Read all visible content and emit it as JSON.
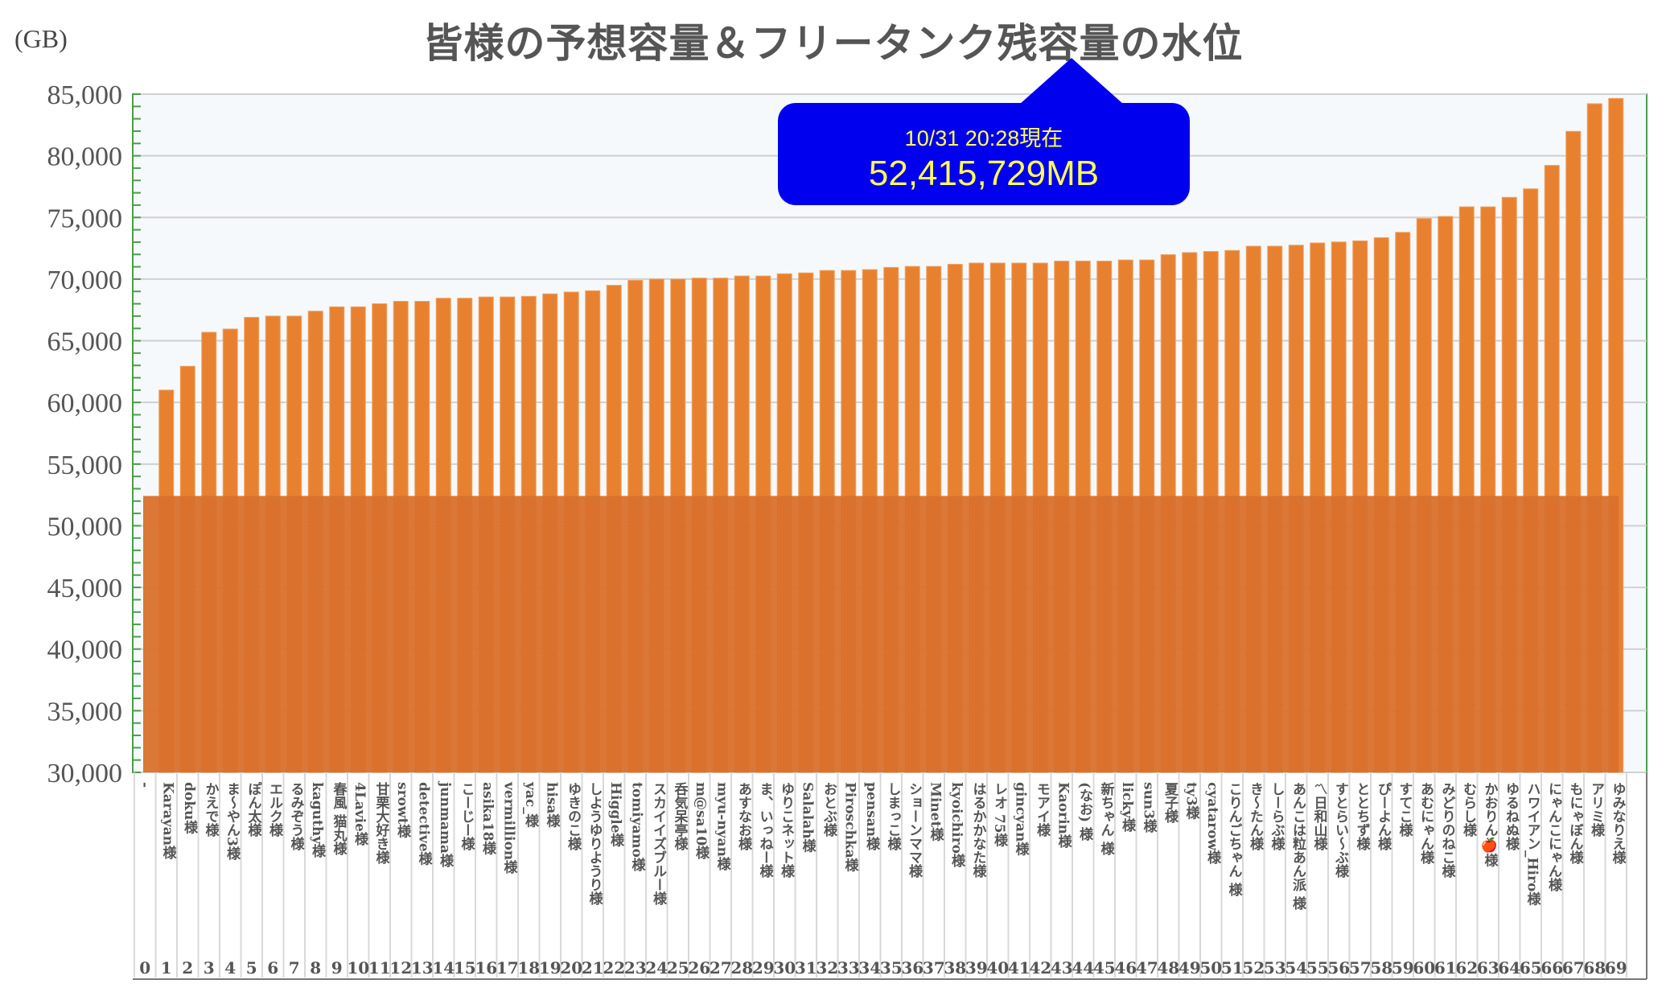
{
  "chart_data": {
    "type": "bar",
    "title": "皆様の予想容量＆フリータンク残容量の水位",
    "ylabel": "(GB)",
    "xlabel": "",
    "ylim": [
      30000,
      85000
    ],
    "yticks": [
      "30,000",
      "35,000",
      "40,000",
      "45,000",
      "50,000",
      "55,000",
      "60,000",
      "65,000",
      "70,000",
      "75,000",
      "80,000",
      "85,000"
    ],
    "grid": true,
    "categories": [
      "0",
      "1",
      "2",
      "3",
      "4",
      "5",
      "6",
      "7",
      "8",
      "9",
      "10",
      "11",
      "12",
      "13",
      "14",
      "15",
      "16",
      "17",
      "18",
      "19",
      "20",
      "21",
      "22",
      "23",
      "24",
      "25",
      "26",
      "27",
      "28",
      "29",
      "30",
      "31",
      "32",
      "33",
      "34",
      "35",
      "36",
      "37",
      "38",
      "39",
      "40",
      "41",
      "42",
      "43",
      "44",
      "45",
      "46",
      "47",
      "48",
      "49",
      "50",
      "51",
      "52",
      "53",
      "54",
      "55",
      "56",
      "57",
      "58",
      "59",
      "60",
      "61",
      "62",
      "63",
      "64",
      "65",
      "66",
      "67",
      "68",
      "69"
    ],
    "names": [
      "-",
      "Karayan様",
      "doku様",
      "かえで様",
      "ま～やん3様",
      "ぽん太様",
      "エルク様",
      "るみぞう様",
      "kaguthy様",
      "春風 猫丸様",
      "4Lavie様",
      "甘栗大好き様",
      "srowt様",
      "detective様",
      "junmama様",
      "こーじー様",
      "asika18様",
      "vermillion様",
      "yac_様",
      "hisa様",
      "ゆきのこ様",
      "しようゆりようり様",
      "Higgle様",
      "tomiyamo様",
      "スカイイズブルー様",
      "呑気呆亭様",
      "m@sa10様",
      "myu-nyan様",
      "あすなお様",
      "ま、いっねー様",
      "ゆりこネット様",
      "Salalah様",
      "おとぶ様",
      "Piroschka様",
      "pensan様",
      "しまっこ様",
      "ショーンママ様",
      "Minet様",
      "kyoichiro様",
      "はるかかなた様",
      "レオ 75様",
      "gincyan様",
      "モアイ様",
      "Kaorin様",
      "(なお) 様",
      "新ちゃん 様",
      "licky様",
      "sun3様",
      "夏子様",
      "ty3様",
      "cyatarow様",
      "こりんごちゃん 様",
      "き～たん様",
      "しーらぶ様",
      "あんこは粒あん派 様",
      "〽日和山様",
      "すとらい～ぶ様",
      "ととちず様",
      "ぴーよん様",
      "すてこ様",
      "あむにゃん様",
      "みどりのねこ様",
      "むらし様",
      "かおりん🍎様",
      "ゆるねぬ様",
      "ハワイアン_Hiro様",
      "にゃんこにゃん様",
      "もにゃぼん様",
      "アリミ様",
      "ゆみなりえ様"
    ],
    "values": [
      null,
      61000,
      62930,
      65690,
      65950,
      66900,
      67000,
      67000,
      67400,
      67750,
      67750,
      68000,
      68200,
      68200,
      68450,
      68450,
      68550,
      68550,
      68600,
      68800,
      68950,
      69050,
      69500,
      69900,
      70000,
      70000,
      70080,
      70080,
      70250,
      70250,
      70430,
      70500,
      70700,
      70700,
      70770,
      70950,
      71030,
      71030,
      71200,
      71300,
      71300,
      71300,
      71300,
      71460,
      71460,
      71460,
      71550,
      71550,
      71980,
      72150,
      72240,
      72320,
      72670,
      72670,
      72750,
      72930,
      73010,
      73100,
      73360,
      73790,
      74910,
      75080,
      75860,
      75860,
      76630,
      77320,
      79220,
      81980,
      84220,
      84650
    ],
    "water_level": 52415.729,
    "annotation": {
      "date": "10/31 20:28現在",
      "value": "52,415,729MB"
    },
    "colors": {
      "bar": "#e8812f",
      "water": "#d9702c",
      "grid": "#d0d0d0",
      "frame": "#4a9e4a",
      "callout": "#0000ee",
      "callout_text": "#ffff55"
    }
  }
}
